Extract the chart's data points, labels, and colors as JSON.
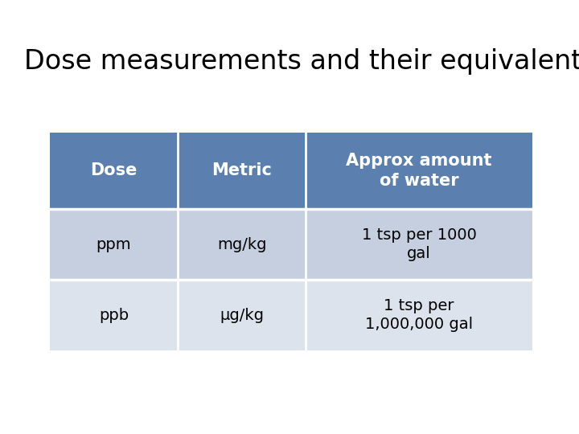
{
  "title": "Dose measurements and their equivalents",
  "title_fontsize": 24,
  "title_color": "#000000",
  "background_color": "#ffffff",
  "header_bg_color": "#5b80b0",
  "row1_bg_color": "#c5cfdf",
  "row2_bg_color": "#dde3ed",
  "header_text_color": "#ffffff",
  "row_text_color": "#000000",
  "col_headers": [
    "Dose",
    "Metric",
    "Approx amount\nof water"
  ],
  "rows": [
    [
      "ppm",
      "mg/kg",
      "1 tsp per 1000\ngal"
    ],
    [
      "ppb",
      "μg/kg",
      "1 tsp per\n1,000,000 gal"
    ]
  ],
  "font_size_header": 15,
  "font_size_body": 14,
  "font_size_title": 24
}
